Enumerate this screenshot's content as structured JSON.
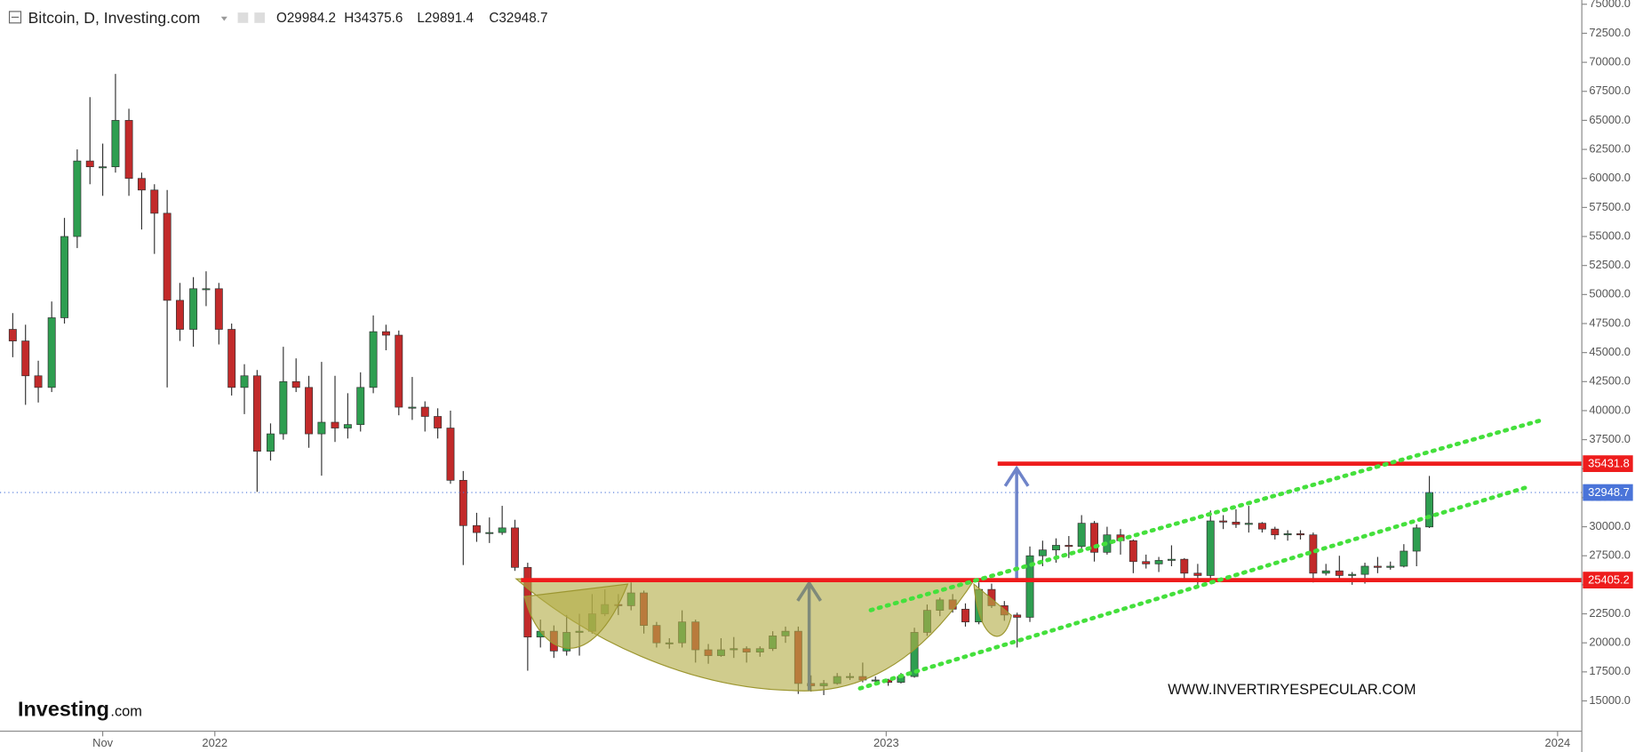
{
  "header": {
    "title": "Bitcoin, D, Investing.com",
    "ohlc": [
      "O29984.2",
      "H34375.6",
      "L29891.4",
      "C32948.7"
    ]
  },
  "logo": {
    "brand": "Investing",
    "suffix": ".com"
  },
  "watermark": "WWW.INVERTIRYESPECULAR.COM",
  "chart_data": {
    "type": "candlestick",
    "up_color": "#2e9e50",
    "down_color": "#c22a2a",
    "xlim": [
      2021.68,
      2024.033
    ],
    "xticks": [
      {
        "value": 2021.833,
        "label": "Nov"
      },
      2022,
      2023,
      2024
    ],
    "ylim": [
      12485,
      75367
    ],
    "yticks": [
      {
        "value": 15000,
        "label": "15000.0"
      },
      {
        "value": 17500,
        "label": "17500.0"
      },
      {
        "value": 20000,
        "label": "20000.0"
      },
      {
        "value": 22500,
        "label": "22500.0"
      },
      {
        "value": 25000,
        "label": "25000.0"
      },
      {
        "value": 27500,
        "label": "27500.0"
      },
      {
        "value": 30000,
        "label": "30000.0"
      },
      {
        "value": 32500,
        "label": "32500.0"
      },
      {
        "value": 35000,
        "label": "35000.0"
      },
      {
        "value": 37500,
        "label": "37500.0"
      },
      {
        "value": 40000,
        "label": "40000.0"
      },
      {
        "value": 42500,
        "label": "42500.0"
      },
      {
        "value": 45000,
        "label": "45000.0"
      },
      {
        "value": 47500,
        "label": "47500.0"
      },
      {
        "value": 50000,
        "label": "50000.0"
      },
      {
        "value": 52500,
        "label": "52500.0"
      },
      {
        "value": 55000,
        "label": "55000.0"
      },
      {
        "value": 57500,
        "label": "57500.0"
      },
      {
        "value": 60000,
        "label": "60000.0"
      },
      {
        "value": 62500,
        "label": "62500.0"
      },
      {
        "value": 65000,
        "label": "65000.0"
      },
      {
        "value": 67500,
        "label": "67500.0"
      },
      {
        "value": 70000,
        "label": "70000.0"
      },
      {
        "value": 72500,
        "label": "72500.0"
      },
      {
        "value": 75000,
        "label": "75000.0"
      }
    ],
    "x": [
      2021.699,
      2021.718,
      2021.737,
      2021.757,
      2021.776,
      2021.795,
      2021.814,
      2021.833,
      2021.852,
      2021.872,
      2021.891,
      2021.91,
      2021.929,
      2021.948,
      2021.968,
      2021.987,
      2022.006,
      2022.025,
      2022.044,
      2022.063,
      2022.083,
      2022.102,
      2022.121,
      2022.14,
      2022.159,
      2022.179,
      2022.198,
      2022.217,
      2022.236,
      2022.255,
      2022.274,
      2022.294,
      2022.313,
      2022.332,
      2022.351,
      2022.37,
      2022.39,
      2022.409,
      2022.428,
      2022.447,
      2022.466,
      2022.485,
      2022.505,
      2022.524,
      2022.543,
      2022.562,
      2022.581,
      2022.601,
      2022.62,
      2022.639,
      2022.658,
      2022.677,
      2022.696,
      2022.716,
      2022.735,
      2022.754,
      2022.773,
      2022.792,
      2022.812,
      2022.831,
      2022.85,
      2022.869,
      2022.888,
      2022.907,
      2022.927,
      2022.946,
      2022.965,
      2022.984,
      2023.003,
      2023.022,
      2023.042,
      2023.061,
      2023.08,
      2023.099,
      2023.118,
      2023.138,
      2023.157,
      2023.176,
      2023.195,
      2023.214,
      2023.233,
      2023.253,
      2023.272,
      2023.291,
      2023.31,
      2023.329,
      2023.349,
      2023.368,
      2023.387,
      2023.406,
      2023.425,
      2023.444,
      2023.464,
      2023.483,
      2023.502,
      2023.521,
      2023.54,
      2023.56,
      2023.579,
      2023.598,
      2023.617,
      2023.636,
      2023.655,
      2023.675,
      2023.694,
      2023.713,
      2023.732,
      2023.751,
      2023.771,
      2023.79,
      2023.809
    ],
    "open": [
      47000,
      46000,
      43000,
      42000,
      48000,
      55000,
      61500,
      61000,
      61000,
      65000,
      60000,
      59000,
      57000,
      49500,
      47000,
      50500,
      50500,
      47000,
      42000,
      43000,
      36500,
      38000,
      42500,
      42000,
      38000,
      39000,
      38500,
      38800,
      42000,
      46800,
      46500,
      40300,
      40300,
      39500,
      38500,
      34000,
      30100,
      29500,
      29500,
      29900,
      26500,
      20500,
      21000,
      19300,
      20900,
      21000,
      22500,
      23300,
      23200,
      24300,
      21500,
      20000,
      20000,
      21800,
      19400,
      18900,
      19400,
      19500,
      19200,
      19500,
      20600,
      21000,
      16500,
      16300,
      16500,
      17100,
      17100,
      16800,
      16800,
      16600,
      17100,
      20900,
      22800,
      23700,
      22900,
      21800,
      24600,
      23200,
      22400,
      22200,
      27500,
      28000,
      28400,
      28300,
      30300,
      27800,
      29300,
      28800,
      27000,
      26800,
      27100,
      27200,
      26000,
      25800,
      30500,
      30400,
      30200,
      30300,
      29800,
      29300,
      29400,
      29300,
      26000,
      26200,
      25800,
      25900,
      26600,
      26500,
      26600,
      27900,
      29984.2
    ],
    "high": [
      48400,
      47400,
      44300,
      49400,
      56600,
      62500,
      67000,
      63000,
      69000,
      66000,
      60500,
      59500,
      59000,
      51000,
      51500,
      52000,
      51000,
      47500,
      44000,
      43500,
      38900,
      45500,
      44500,
      43000,
      44200,
      43000,
      41500,
      43300,
      48200,
      47400,
      46900,
      42900,
      40800,
      40200,
      40000,
      34800,
      31200,
      30800,
      31800,
      30600,
      26900,
      22000,
      21500,
      22400,
      22500,
      24200,
      24600,
      24200,
      25200,
      24500,
      21800,
      20400,
      22800,
      22000,
      19900,
      20400,
      20500,
      19700,
      19700,
      21000,
      21400,
      21400,
      17200,
      16800,
      17400,
      17400,
      18300,
      17100,
      16900,
      17400,
      21300,
      23300,
      23900,
      24200,
      23400,
      25200,
      25100,
      23600,
      22600,
      28300,
      28800,
      29000,
      29200,
      31000,
      30500,
      30000,
      29800,
      28900,
      27600,
      27400,
      28400,
      27300,
      26800,
      31400,
      31000,
      31500,
      31800,
      30400,
      30000,
      29700,
      29700,
      29500,
      26800,
      27500,
      26100,
      26900,
      27400,
      27000,
      28500,
      30200,
      34375.6
    ],
    "low": [
      44600,
      40500,
      40700,
      41600,
      47500,
      54000,
      59500,
      58500,
      60500,
      58500,
      55600,
      53500,
      42000,
      46000,
      45500,
      49000,
      45700,
      41300,
      39700,
      33000,
      35700,
      37500,
      41600,
      36800,
      34400,
      37300,
      37600,
      38200,
      41500,
      45200,
      39600,
      39200,
      38200,
      37600,
      33700,
      26700,
      28700,
      28600,
      29300,
      26200,
      17600,
      19600,
      18700,
      18900,
      18900,
      20800,
      22300,
      22400,
      22800,
      20800,
      19600,
      19500,
      19600,
      18300,
      18200,
      18800,
      18700,
      18300,
      18800,
      19300,
      20000,
      15600,
      15800,
      15500,
      16400,
      16800,
      16600,
      16500,
      16300,
      16500,
      17000,
      20600,
      22300,
      22600,
      21400,
      21600,
      23000,
      21900,
      19600,
      21800,
      26600,
      26900,
      27300,
      28100,
      27000,
      27600,
      27600,
      26000,
      26400,
      26100,
      26600,
      25500,
      24800,
      25400,
      29800,
      29900,
      29500,
      29500,
      28900,
      28800,
      28900,
      25200,
      25800,
      25300,
      25000,
      25100,
      26000,
      26300,
      26500,
      26600,
      29891.4
    ],
    "close": [
      46000,
      43000,
      42000,
      48000,
      55000,
      61500,
      61000,
      61000,
      65000,
      60000,
      59000,
      57000,
      49500,
      47000,
      50500,
      50500,
      47000,
      42000,
      43000,
      36500,
      38000,
      42500,
      42000,
      38000,
      39000,
      38500,
      38800,
      42000,
      46800,
      46500,
      40300,
      40300,
      39500,
      38500,
      34000,
      30100,
      29500,
      29500,
      29900,
      26500,
      20500,
      21000,
      19300,
      20900,
      21000,
      22500,
      23300,
      23200,
      24300,
      21500,
      20000,
      20000,
      21800,
      19400,
      18900,
      19400,
      19500,
      19200,
      19500,
      20600,
      21000,
      16500,
      16300,
      16500,
      17100,
      17100,
      16800,
      16800,
      16600,
      17100,
      20900,
      22800,
      23700,
      22900,
      21800,
      24600,
      23200,
      22400,
      22200,
      27500,
      28000,
      28400,
      28300,
      30300,
      27800,
      29300,
      28800,
      27000,
      26800,
      27100,
      27200,
      26000,
      25800,
      30500,
      30400,
      30200,
      30300,
      29800,
      29300,
      29400,
      29300,
      26000,
      26200,
      25800,
      25900,
      26600,
      26500,
      26600,
      27900,
      29900,
      32948.7
    ],
    "levels": [
      35431.8,
      25405.2
    ],
    "level_starts": [
      2023.166,
      2022.456
    ],
    "level_color": "#ee1c1c",
    "last_price": 32948.7,
    "last_price_color": "#4a74d9",
    "trendlines": [
      {
        "x": [
          2022.977,
          2023.975
        ],
        "y": [
          22815,
          39164
        ]
      },
      {
        "x": [
          2022.961,
          2023.955
        ],
        "y": [
          16078,
          33415
        ]
      }
    ],
    "trendline_color": "#44e03c"
  }
}
